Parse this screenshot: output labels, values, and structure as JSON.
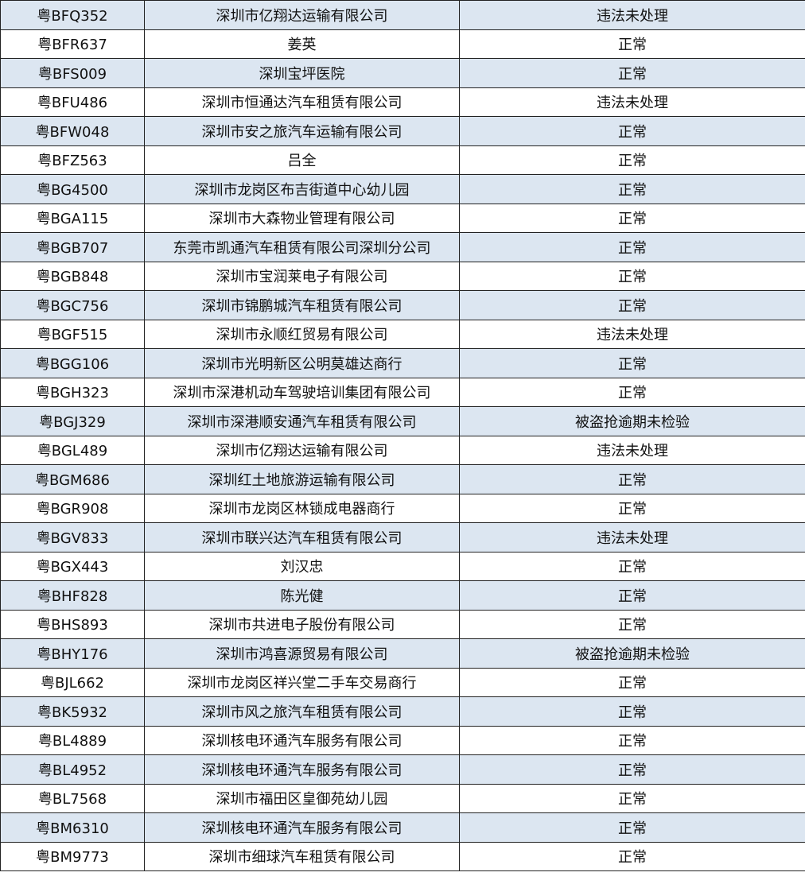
{
  "rows": [
    [
      "粤BFQ352",
      "深圳市亿翔达运输有限公司",
      "违法未处理"
    ],
    [
      "粤BFR637",
      "姜英",
      "正常"
    ],
    [
      "粤BFS009",
      "深圳宝坪医院",
      "正常"
    ],
    [
      "粤BFU486",
      "深圳市恒通达汽车租赁有限公司",
      "违法未处理"
    ],
    [
      "粤BFW048",
      "深圳市安之旅汽车运输有限公司",
      "正常"
    ],
    [
      "粤BFZ563",
      "吕全",
      "正常"
    ],
    [
      "粤BG4500",
      "深圳市龙岗区布吉街道中心幼儿园",
      "正常"
    ],
    [
      "粤BGA115",
      "深圳市大森物业管理有限公司",
      "正常"
    ],
    [
      "粤BGB707",
      "东莞市凯通汽车租赁有限公司深圳分公司",
      "正常"
    ],
    [
      "粤BGB848",
      "深圳市宝润莱电子有限公司",
      "正常"
    ],
    [
      "粤BGC756",
      "深圳市锦鹏城汽车租赁有限公司",
      "正常"
    ],
    [
      "粤BGF515",
      "深圳市永顺红贸易有限公司",
      "违法未处理"
    ],
    [
      "粤BGG106",
      "深圳市光明新区公明莫雄达商行",
      "正常"
    ],
    [
      "粤BGH323",
      "深圳市深港机动车驾驶培训集团有限公司",
      "正常"
    ],
    [
      "粤BGJ329",
      "深圳市深港顺安通汽车租赁有限公司",
      "被盗抢逾期未检验"
    ],
    [
      "粤BGL489",
      "深圳市亿翔达运输有限公司",
      "违法未处理"
    ],
    [
      "粤BGM686",
      "深圳红土地旅游运输有限公司",
      "正常"
    ],
    [
      "粤BGR908",
      "深圳市龙岗区林锁成电器商行",
      "正常"
    ],
    [
      "粤BGV833",
      "深圳市联兴达汽车租赁有限公司",
      "违法未处理"
    ],
    [
      "粤BGX443",
      "刘汉忠",
      "正常"
    ],
    [
      "粤BHF828",
      "陈光健",
      "正常"
    ],
    [
      "粤BHS893",
      "深圳市共进电子股份有限公司",
      "正常"
    ],
    [
      "粤BHY176",
      "深圳市鸿喜源贸易有限公司",
      "被盗抢逾期未检验"
    ],
    [
      "粤BJL662",
      "深圳市龙岗区祥兴堂二手车交易商行",
      "正常"
    ],
    [
      "粤BK5932",
      "深圳市风之旅汽车租赁有限公司",
      "正常"
    ],
    [
      "粤BL4889",
      "深圳核电环通汽车服务有限公司",
      "正常"
    ],
    [
      "粤BL4952",
      "深圳核电环通汽车服务有限公司",
      "正常"
    ],
    [
      "粤BL7568",
      "深圳市福田区皇御苑幼儿园",
      "正常"
    ],
    [
      "粤BM6310",
      "深圳核电环通汽车服务有限公司",
      "正常"
    ],
    [
      "粤BM9773",
      "深圳市细球汽车租赁有限公司",
      "正常"
    ]
  ],
  "colors": {
    "shaded_row": "#dce6f1",
    "border": "#222222"
  }
}
